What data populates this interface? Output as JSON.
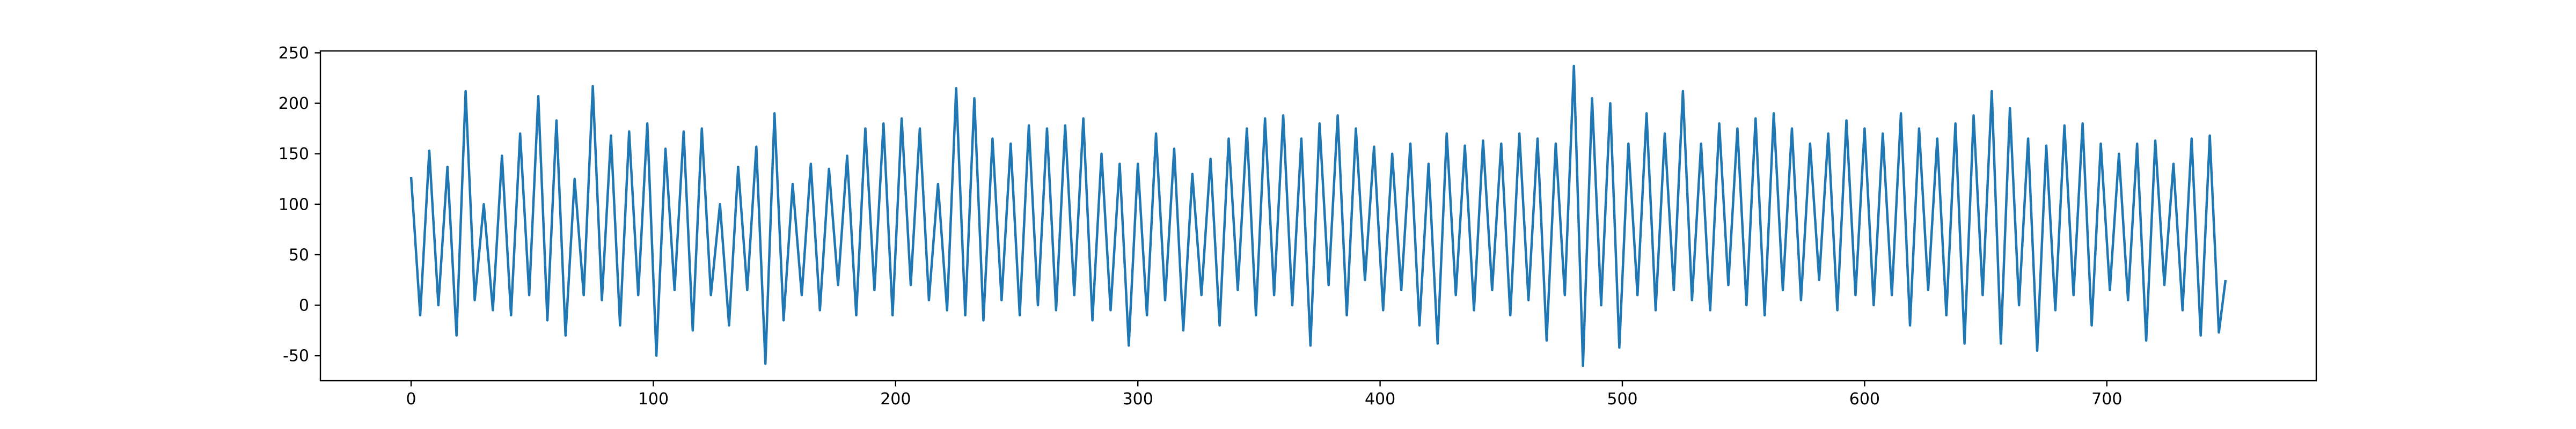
{
  "chart_data": {
    "type": "line",
    "color": "#1f77b4",
    "x": [
      0,
      3.75,
      7.5,
      11.25,
      15,
      18.75,
      22.5,
      26.25,
      30,
      33.75,
      37.5,
      41.25,
      45,
      48.75,
      52.5,
      56.25,
      60,
      63.75,
      67.5,
      71.25,
      75,
      78.75,
      82.5,
      86.25,
      90,
      93.75,
      97.5,
      101.25,
      105,
      108.75,
      112.5,
      116.25,
      120,
      123.75,
      127.5,
      131.25,
      135,
      138.75,
      142.5,
      146.25,
      150,
      153.75,
      157.5,
      161.25,
      165,
      168.75,
      172.5,
      176.25,
      180,
      183.75,
      187.5,
      191.25,
      195,
      198.75,
      202.5,
      206.25,
      210,
      213.75,
      217.5,
      221.25,
      225,
      228.75,
      232.5,
      236.25,
      240,
      243.75,
      247.5,
      251.25,
      255,
      258.75,
      262.5,
      266.25,
      270,
      273.75,
      277.5,
      281.25,
      285,
      288.75,
      292.5,
      296.25,
      300,
      303.75,
      307.5,
      311.25,
      315,
      318.75,
      322.5,
      326.25,
      330,
      333.75,
      337.5,
      341.25,
      345,
      348.75,
      352.5,
      356.25,
      360,
      363.75,
      367.5,
      371.25,
      375,
      378.75,
      382.5,
      386.25,
      390,
      393.75,
      397.5,
      401.25,
      405,
      408.75,
      412.5,
      416.25,
      420,
      423.75,
      427.5,
      431.25,
      435,
      438.75,
      442.5,
      446.25,
      450,
      453.75,
      457.5,
      461.25,
      465,
      468.75,
      472.5,
      476.25,
      480,
      483.75,
      487.5,
      491.25,
      495,
      498.75,
      502.5,
      506.25,
      510,
      513.75,
      517.5,
      521.25,
      525,
      528.75,
      532.5,
      536.25,
      540,
      543.75,
      547.5,
      551.25,
      555,
      558.75,
      562.5,
      566.25,
      570,
      573.75,
      577.5,
      581.25,
      585,
      588.75,
      592.5,
      596.25,
      600,
      603.75,
      607.5,
      611.25,
      615,
      618.75,
      622.5,
      626.25,
      630,
      633.75,
      637.5,
      641.25,
      645,
      648.75,
      652.5,
      656.25,
      660,
      663.75,
      667.5,
      671.25,
      675,
      678.75,
      682.5,
      686.25,
      690,
      693.75,
      697.5,
      701.25,
      705,
      708.75,
      712.5,
      716.25,
      720,
      723.75,
      727.5,
      731.25,
      735,
      738.75,
      742.5,
      746.25,
      749
    ],
    "values": [
      127,
      -10,
      153,
      0,
      137,
      -30,
      212,
      5,
      100,
      -5,
      148,
      -10,
      170,
      10,
      207,
      -15,
      183,
      -30,
      125,
      10,
      217,
      5,
      168,
      -20,
      172,
      10,
      180,
      -50,
      155,
      15,
      172,
      -25,
      175,
      10,
      100,
      -20,
      137,
      15,
      157,
      -58,
      190,
      -15,
      120,
      10,
      140,
      -5,
      135,
      20,
      148,
      -10,
      175,
      15,
      180,
      -10,
      185,
      20,
      175,
      5,
      120,
      -5,
      215,
      -10,
      205,
      -15,
      165,
      5,
      160,
      -10,
      178,
      0,
      175,
      -5,
      178,
      10,
      185,
      -15,
      150,
      -5,
      140,
      -40,
      140,
      -10,
      170,
      5,
      155,
      -25,
      130,
      10,
      145,
      -20,
      165,
      15,
      175,
      -10,
      185,
      10,
      188,
      0,
      165,
      -40,
      180,
      20,
      188,
      -10,
      175,
      25,
      157,
      -5,
      150,
      15,
      160,
      -20,
      140,
      -38,
      170,
      10,
      158,
      -5,
      163,
      15,
      160,
      -10,
      170,
      5,
      165,
      -35,
      160,
      10,
      237,
      -60,
      205,
      0,
      200,
      -42,
      160,
      10,
      190,
      -5,
      170,
      15,
      212,
      5,
      160,
      -5,
      180,
      20,
      175,
      0,
      185,
      -10,
      190,
      15,
      175,
      5,
      160,
      25,
      170,
      -5,
      183,
      10,
      175,
      0,
      170,
      10,
      190,
      -20,
      175,
      15,
      165,
      -10,
      180,
      -38,
      188,
      10,
      212,
      -38,
      195,
      0,
      165,
      -45,
      158,
      -5,
      178,
      10,
      180,
      -20,
      160,
      15,
      150,
      5,
      160,
      -35,
      163,
      20,
      140,
      -5,
      165,
      -30,
      168,
      -27,
      25
    ],
    "xlim": [
      -37.45,
      786.45
    ],
    "xticks": [
      0,
      100,
      200,
      300,
      400,
      500,
      600,
      700
    ],
    "ylim": [
      -74.85,
      251.85
    ],
    "yticks": [
      -50,
      0,
      50,
      100,
      150,
      200,
      250
    ]
  }
}
